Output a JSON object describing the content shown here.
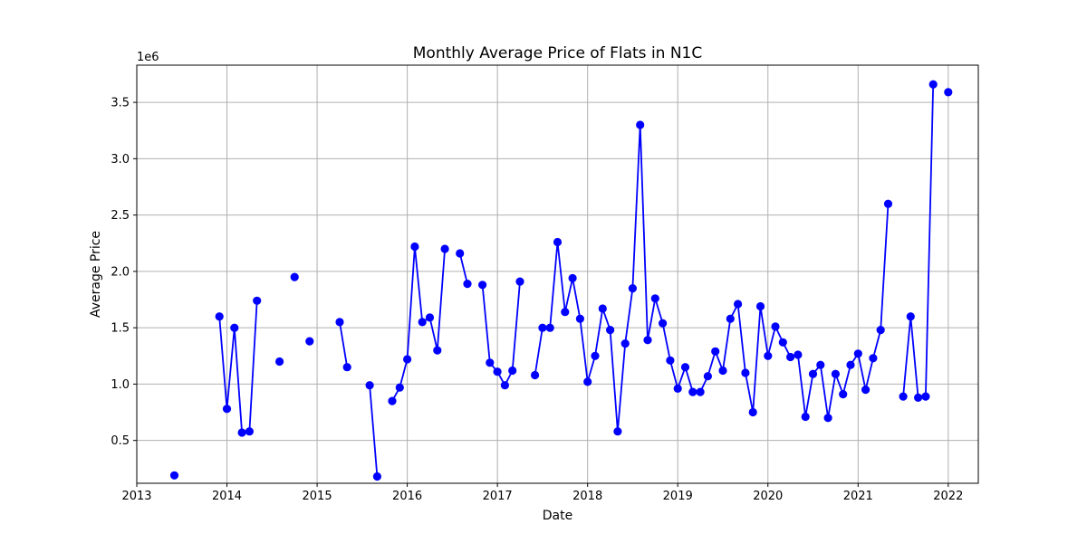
{
  "chart_data": {
    "type": "line",
    "title": "Monthly Average Price of Flats in N1C",
    "xlabel": "Date",
    "ylabel": "Average Price",
    "y_offset_label": "1e6",
    "y_scale": 1000000,
    "xlim": [
      "2013-01-01",
      "2022-05-01"
    ],
    "ylim": [
      0.12,
      3.83
    ],
    "x_ticks": [
      "2013",
      "2014",
      "2015",
      "2016",
      "2017",
      "2018",
      "2019",
      "2020",
      "2021",
      "2022"
    ],
    "y_ticks": [
      "0.5",
      "1.0",
      "1.5",
      "2.0",
      "2.5",
      "3.0",
      "3.5"
    ],
    "grid": true,
    "colors": {
      "series": "#0000ff",
      "grid": "#b0b0b0",
      "axis": "#000000"
    },
    "series": [
      {
        "points": [
          [
            "2013-06",
            0.19
          ],
          [
            "2013-12",
            1.6
          ],
          [
            "2014-01",
            0.78
          ],
          [
            "2014-02",
            1.5
          ],
          [
            "2014-03",
            0.57
          ],
          [
            "2014-04",
            0.58
          ],
          [
            "2014-05",
            1.74
          ],
          [
            "2014-08",
            1.2
          ],
          [
            "2014-10",
            1.95
          ],
          [
            "2014-12",
            1.38
          ],
          [
            "2015-04",
            1.55
          ],
          [
            "2015-05",
            1.15
          ],
          [
            "2015-08",
            0.99
          ],
          [
            "2015-09",
            0.18
          ],
          [
            "2015-11",
            0.85
          ],
          [
            "2015-12",
            0.97
          ],
          [
            "2016-01",
            1.22
          ],
          [
            "2016-02",
            2.22
          ],
          [
            "2016-03",
            1.55
          ],
          [
            "2016-04",
            1.59
          ],
          [
            "2016-05",
            1.3
          ],
          [
            "2016-06",
            2.2
          ],
          [
            "2016-08",
            2.16
          ],
          [
            "2016-09",
            1.89
          ],
          [
            "2016-11",
            1.88
          ],
          [
            "2016-12",
            1.19
          ],
          [
            "2017-01",
            1.11
          ],
          [
            "2017-02",
            0.99
          ],
          [
            "2017-03",
            1.12
          ],
          [
            "2017-04",
            1.91
          ],
          [
            "2017-06",
            1.08
          ],
          [
            "2017-07",
            1.5
          ],
          [
            "2017-08",
            1.5
          ],
          [
            "2017-09",
            2.26
          ],
          [
            "2017-10",
            1.64
          ],
          [
            "2017-11",
            1.94
          ],
          [
            "2017-12",
            1.58
          ],
          [
            "2018-01",
            1.02
          ],
          [
            "2018-02",
            1.25
          ],
          [
            "2018-03",
            1.67
          ],
          [
            "2018-04",
            1.48
          ],
          [
            "2018-05",
            0.58
          ],
          [
            "2018-06",
            1.36
          ],
          [
            "2018-07",
            1.85
          ],
          [
            "2018-08",
            3.3
          ],
          [
            "2018-09",
            1.39
          ],
          [
            "2018-10",
            1.76
          ],
          [
            "2018-11",
            1.54
          ],
          [
            "2018-12",
            1.21
          ],
          [
            "2019-01",
            0.96
          ],
          [
            "2019-02",
            1.15
          ],
          [
            "2019-03",
            0.93
          ],
          [
            "2019-04",
            0.93
          ],
          [
            "2019-05",
            1.07
          ],
          [
            "2019-06",
            1.29
          ],
          [
            "2019-07",
            1.12
          ],
          [
            "2019-08",
            1.58
          ],
          [
            "2019-09",
            1.71
          ],
          [
            "2019-10",
            1.1
          ],
          [
            "2019-11",
            0.75
          ],
          [
            "2019-12",
            1.69
          ],
          [
            "2020-01",
            1.25
          ],
          [
            "2020-02",
            1.51
          ],
          [
            "2020-03",
            1.37
          ],
          [
            "2020-04",
            1.24
          ],
          [
            "2020-05",
            1.26
          ],
          [
            "2020-06",
            0.71
          ],
          [
            "2020-07",
            1.09
          ],
          [
            "2020-08",
            1.17
          ],
          [
            "2020-09",
            0.7
          ],
          [
            "2020-10",
            1.09
          ],
          [
            "2020-11",
            0.91
          ],
          [
            "2020-12",
            1.17
          ],
          [
            "2021-01",
            1.27
          ],
          [
            "2021-02",
            0.95
          ],
          [
            "2021-03",
            1.23
          ],
          [
            "2021-04",
            1.48
          ],
          [
            "2021-05",
            2.6
          ],
          [
            "2021-07",
            0.89
          ],
          [
            "2021-08",
            1.6
          ],
          [
            "2021-09",
            0.88
          ],
          [
            "2021-10",
            0.89
          ],
          [
            "2021-11",
            3.66
          ],
          [
            "2022-01",
            3.59
          ]
        ]
      }
    ]
  }
}
